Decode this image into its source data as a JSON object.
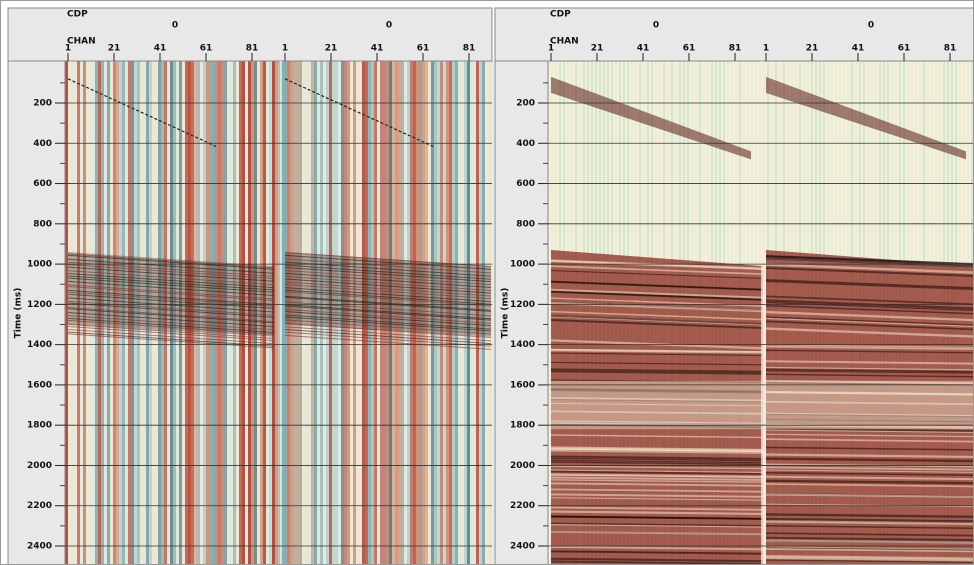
{
  "panels": [
    {
      "header": {
        "cdp_label": "CDP",
        "chan_label": "CHAN",
        "cdp_values": [
          "0",
          "0"
        ],
        "channel_ticks": [
          [
            1,
            21,
            41,
            61,
            81
          ],
          [
            1,
            21,
            41,
            61,
            81
          ]
        ]
      },
      "y_axis": {
        "label": "Time (ms)",
        "ticks": [
          200,
          400,
          600,
          800,
          1000,
          1200,
          1400,
          1600,
          1800,
          2000,
          2200,
          2400
        ]
      }
    },
    {
      "header": {
        "cdp_label": "CDP",
        "chan_label": "CHAN",
        "cdp_values": [
          "0",
          "0"
        ],
        "channel_ticks": [
          [
            1,
            21,
            41,
            61,
            81
          ],
          [
            1,
            21,
            41,
            61,
            81
          ]
        ]
      },
      "y_axis": {
        "label": "Time (ms)",
        "ticks": [
          200,
          400,
          600,
          800,
          1000,
          1200,
          1400,
          1600,
          1800,
          2000,
          2200,
          2400
        ]
      }
    }
  ]
}
